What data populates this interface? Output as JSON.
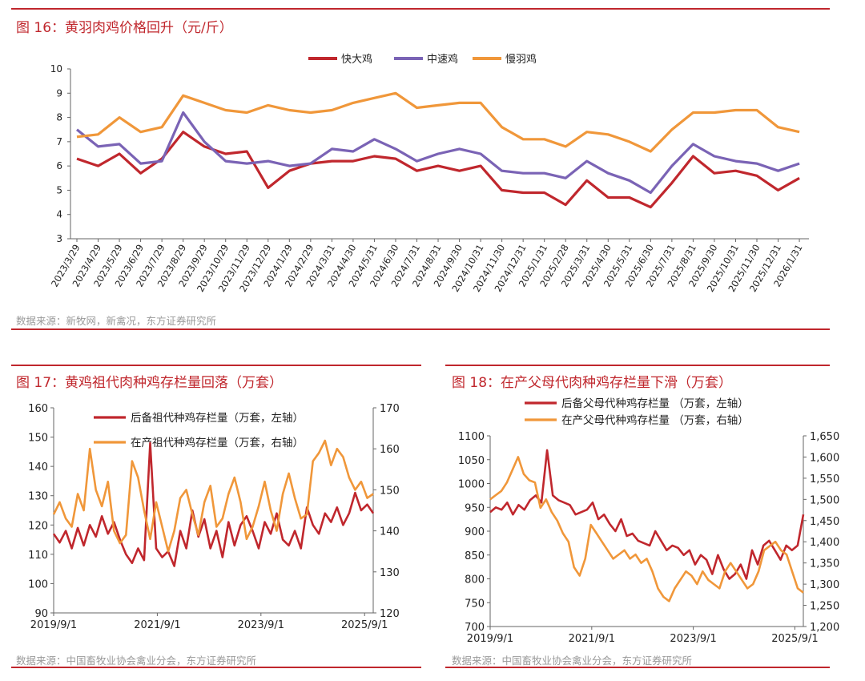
{
  "fig16": {
    "title": "图 16：黄羽肉鸡价格回升（元/斤）",
    "source": "数据来源：新牧网，新禽况，东方证券研究所"
  },
  "fig17": {
    "title": "图 17：黄鸡祖代肉种鸡存栏量回落（万套）",
    "source": "数据来源：中国畜牧业协会禽业分会，东方证券研究所"
  },
  "fig18": {
    "title": "图 18：在产父母代肉种鸡存栏量下滑（万套）",
    "source": "数据来源：中国畜牧业协会禽业分会，东方证券研究所"
  },
  "colors": {
    "red": "#c0272d",
    "purple": "#7a63b5",
    "orange": "#f0973a",
    "axis": "#666666"
  },
  "chart_data": [
    {
      "id": "fig16",
      "type": "line",
      "ylim": [
        3,
        10
      ],
      "yticks": [
        3,
        4,
        5,
        6,
        7,
        8,
        9,
        10
      ],
      "categories": [
        "2023/3/29",
        "2023/4/29",
        "2023/5/29",
        "2023/6/29",
        "2023/7/29",
        "2023/8/29",
        "2023/9/29",
        "2023/10/29",
        "2023/11/29",
        "2023/12/29",
        "2024/1/29",
        "2024/2/29",
        "2024/3/31",
        "2024/4/30",
        "2024/5/31",
        "2024/6/30",
        "2024/7/31",
        "2024/8/31",
        "2024/9/30",
        "2024/10/31",
        "2024/11/30",
        "2024/12/31",
        "2025/1/31",
        "2025/2/28",
        "2025/3/31",
        "2025/4/30",
        "2025/5/31",
        "2025/6/30",
        "2025/7/31",
        "2025/8/31",
        "2025/9/30",
        "2025/10/31",
        "2025/11/30",
        "2025/12/31",
        "2026/1/31"
      ],
      "series": [
        {
          "name": "快大鸡",
          "color": "#c0272d",
          "values": [
            6.3,
            6.0,
            6.5,
            5.7,
            6.3,
            7.4,
            6.8,
            6.5,
            6.6,
            5.1,
            5.8,
            6.1,
            6.2,
            6.2,
            6.4,
            6.3,
            5.8,
            6.0,
            5.8,
            6.0,
            5.0,
            4.9,
            4.9,
            4.4,
            5.4,
            4.7,
            4.7,
            4.3,
            5.3,
            6.4,
            5.7,
            5.8,
            5.6,
            5.0,
            5.5
          ]
        },
        {
          "name": "中速鸡",
          "color": "#7a63b5",
          "values": [
            7.5,
            6.8,
            6.9,
            6.1,
            6.2,
            8.2,
            7.0,
            6.2,
            6.1,
            6.2,
            6.0,
            6.1,
            6.7,
            6.6,
            7.1,
            6.7,
            6.2,
            6.5,
            6.7,
            6.5,
            5.8,
            5.7,
            5.7,
            5.5,
            6.2,
            5.7,
            5.4,
            4.9,
            6.0,
            6.9,
            6.4,
            6.2,
            6.1,
            5.8,
            6.1
          ]
        },
        {
          "name": "慢羽鸡",
          "color": "#f0973a",
          "values": [
            7.2,
            7.3,
            8.0,
            7.4,
            7.6,
            8.9,
            8.6,
            8.3,
            8.2,
            8.5,
            8.3,
            8.2,
            8.3,
            8.6,
            8.8,
            9.0,
            8.4,
            8.5,
            8.6,
            8.6,
            7.6,
            7.1,
            7.1,
            6.8,
            7.4,
            7.3,
            7.0,
            6.6,
            7.5,
            8.2,
            8.2,
            8.3,
            8.3,
            7.6,
            7.4
          ]
        }
      ]
    },
    {
      "id": "fig17",
      "type": "line",
      "ylim_left": [
        90,
        160
      ],
      "yticks_left": [
        90,
        100,
        110,
        120,
        130,
        140,
        150,
        160
      ],
      "ylim_right": [
        120,
        170
      ],
      "yticks_right": [
        120,
        130,
        140,
        150,
        160,
        170
      ],
      "xticks": [
        "2019/9/1",
        "2021/9/1",
        "2023/9/1",
        "2025/9/1"
      ],
      "x_range": [
        "2019/9/1",
        "2025/11/1"
      ],
      "series": [
        {
          "name": "后备祖代种鸡存栏量（万套，左轴）",
          "color": "#c0272d",
          "axis": "left",
          "values": [
            117,
            114,
            118,
            112,
            119,
            113,
            120,
            116,
            123,
            117,
            121,
            115,
            110,
            107,
            112,
            108,
            148,
            112,
            109,
            111,
            106,
            118,
            112,
            125,
            116,
            122,
            112,
            118,
            109,
            121,
            113,
            120,
            123,
            118,
            112,
            121,
            117,
            124,
            115,
            113,
            118,
            112,
            126,
            120,
            117,
            124,
            121,
            126,
            120,
            124,
            131,
            125,
            127,
            124
          ]
        },
        {
          "name": "在产祖代种鸡存栏量（万套，右轴）",
          "color": "#f0973a",
          "axis": "right",
          "values": [
            144,
            147,
            143,
            141,
            149,
            145,
            160,
            150,
            146,
            152,
            140,
            137,
            139,
            157,
            153,
            145,
            138,
            147,
            141,
            135,
            140,
            148,
            150,
            144,
            139,
            147,
            151,
            141,
            143,
            149,
            153,
            147,
            138,
            141,
            146,
            152,
            145,
            140,
            149,
            154,
            148,
            143,
            144,
            157,
            159,
            162,
            156,
            160,
            158,
            153,
            150,
            152,
            148,
            149
          ]
        }
      ]
    },
    {
      "id": "fig18",
      "type": "line",
      "ylim_left": [
        700,
        1100
      ],
      "yticks_left": [
        700,
        750,
        800,
        850,
        900,
        950,
        1000,
        1050,
        1100
      ],
      "ytick_labels_left": [
        "700",
        "750",
        "800",
        "850",
        "900",
        "950",
        "1000",
        "1050",
        "1100"
      ],
      "ylim_right": [
        1200,
        1650
      ],
      "yticks_right": [
        1200,
        1250,
        1300,
        1350,
        1400,
        1450,
        1500,
        1550,
        1600,
        1650
      ],
      "ytick_labels_right": [
        "1,200",
        "1,250",
        "1,300",
        "1,350",
        "1,400",
        "1,450",
        "1,500",
        "1,550",
        "1,600",
        "1,650"
      ],
      "xticks": [
        "2019/9/1",
        "2021/9/1",
        "2023/9/1",
        "2025/9/1"
      ],
      "x_range": [
        "2019/9/1",
        "2025/11/1"
      ],
      "series": [
        {
          "name": "后备父母代种鸡存栏量 （万套，左轴）",
          "color": "#c0272d",
          "axis": "left",
          "values": [
            940,
            950,
            945,
            960,
            935,
            955,
            945,
            965,
            975,
            960,
            1070,
            975,
            965,
            960,
            955,
            935,
            940,
            945,
            960,
            925,
            935,
            915,
            900,
            925,
            890,
            895,
            880,
            875,
            870,
            900,
            880,
            860,
            870,
            865,
            850,
            860,
            830,
            850,
            840,
            810,
            850,
            820,
            800,
            810,
            830,
            800,
            860,
            830,
            870,
            880,
            860,
            840,
            870,
            860,
            870,
            935
          ]
        },
        {
          "name": "在产父母代种鸡存栏量 （万套，右轴）",
          "color": "#f0973a",
          "axis": "right",
          "values": [
            1500,
            1510,
            1520,
            1540,
            1570,
            1600,
            1560,
            1545,
            1540,
            1480,
            1500,
            1470,
            1450,
            1420,
            1400,
            1340,
            1320,
            1360,
            1440,
            1420,
            1400,
            1380,
            1360,
            1370,
            1380,
            1360,
            1370,
            1350,
            1360,
            1330,
            1290,
            1270,
            1260,
            1290,
            1310,
            1330,
            1320,
            1300,
            1330,
            1310,
            1300,
            1290,
            1330,
            1350,
            1330,
            1310,
            1290,
            1300,
            1330,
            1380,
            1390,
            1400,
            1380,
            1370,
            1330,
            1290,
            1280
          ]
        }
      ]
    }
  ]
}
